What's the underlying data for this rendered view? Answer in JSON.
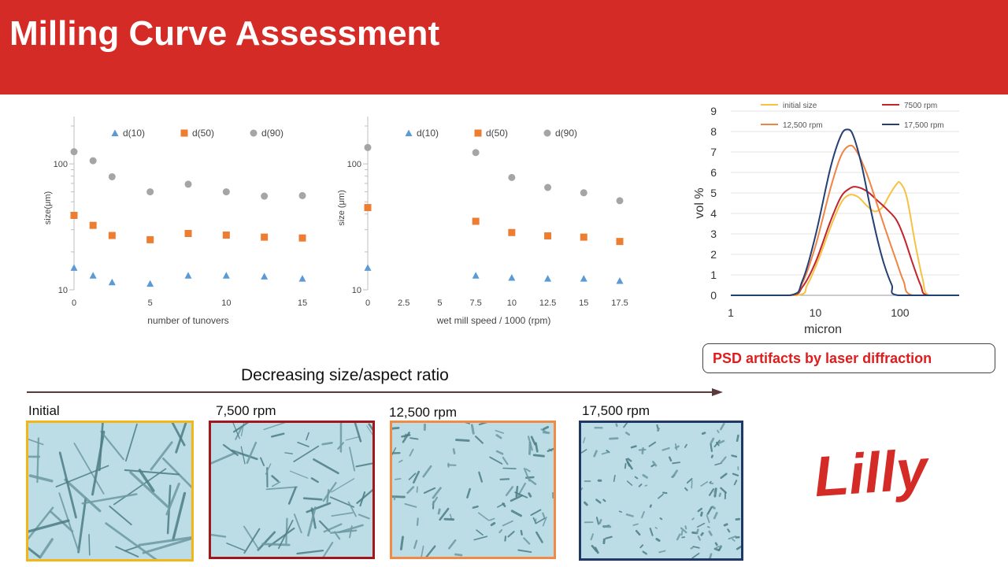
{
  "title": "Milling Curve Assessment",
  "psd_note": "PSD artifacts by laser diffraction",
  "trend_label": "Decreasing size/aspect ratio",
  "logo_text": "Lilly",
  "colors": {
    "banner": "#d52b26",
    "d10": "#5b9bd5",
    "d50": "#ed7d31",
    "d90": "#a5a5a5"
  },
  "micrographs": [
    {
      "label": "Initial",
      "border": "#f2b619",
      "particle": "long-needles"
    },
    {
      "label": "7,500 rpm",
      "border": "#a3171c",
      "particle": "needles"
    },
    {
      "label": "12,500 rpm",
      "border": "#f08a45",
      "particle": "short-rods"
    },
    {
      "label": "17,500 rpm",
      "border": "#1f3864",
      "particle": "fines"
    }
  ],
  "chart_data": [
    {
      "type": "scatter",
      "xlabel": "number of tunovers",
      "ylabel": "size(μm)",
      "xlim": [
        0,
        15
      ],
      "xticks": [
        0,
        5,
        10,
        15
      ],
      "ylim": [
        10,
        200
      ],
      "yscale": "log",
      "yticks": [
        10,
        100
      ],
      "legend": "top",
      "series": [
        {
          "name": "d(10)",
          "marker": "triangle",
          "color": "#5b9bd5",
          "x": [
            0,
            1.25,
            2.5,
            5,
            7.5,
            10,
            12.5,
            15
          ],
          "y": [
            15,
            13,
            11.5,
            11.2,
            13,
            13,
            12.8,
            12.3
          ]
        },
        {
          "name": "d(50)",
          "marker": "square",
          "color": "#ed7d31",
          "x": [
            0,
            1.25,
            2.5,
            5,
            7.5,
            10,
            12.5,
            15
          ],
          "y": [
            39,
            32.5,
            27,
            25,
            28,
            27.2,
            26.2,
            25.8
          ]
        },
        {
          "name": "d(90)",
          "marker": "circle",
          "color": "#a5a5a5",
          "x": [
            0,
            1.25,
            2.5,
            5,
            7.5,
            10,
            12.5,
            15
          ],
          "y": [
            125,
            106,
            79,
            60,
            69,
            60,
            55.5,
            56
          ]
        }
      ]
    },
    {
      "type": "scatter",
      "xlabel": "wet mill speed / 1000 (rpm)",
      "ylabel": "size (μm)",
      "xlim": [
        0,
        17.5
      ],
      "xticks": [
        0,
        2.5,
        5,
        7.5,
        10,
        12.5,
        15,
        17.5
      ],
      "ylim": [
        10,
        200
      ],
      "yscale": "log",
      "yticks": [
        10,
        100
      ],
      "legend": "top",
      "series": [
        {
          "name": "d(10)",
          "marker": "triangle",
          "color": "#5b9bd5",
          "x": [
            0,
            7.5,
            10,
            12.5,
            15,
            17.5
          ],
          "y": [
            15,
            13,
            12.5,
            12.3,
            12.3,
            11.8
          ]
        },
        {
          "name": "d(50)",
          "marker": "square",
          "color": "#ed7d31",
          "x": [
            0,
            7.5,
            10,
            12.5,
            15,
            17.5
          ],
          "y": [
            45,
            35,
            28.5,
            26.8,
            26.2,
            24.2
          ]
        },
        {
          "name": "d(90)",
          "marker": "circle",
          "color": "#a5a5a5",
          "x": [
            0,
            7.5,
            10,
            12.5,
            15,
            17.5
          ],
          "y": [
            135,
            123,
            78,
            65,
            59,
            51
          ]
        }
      ]
    },
    {
      "type": "line",
      "xlabel": "micron",
      "ylabel": "vol %",
      "xscale": "log",
      "xlim": [
        1,
        500
      ],
      "xticks": [
        1,
        10,
        100
      ],
      "ylim": [
        0,
        9
      ],
      "yticks": [
        0,
        1,
        2,
        3,
        4,
        5,
        6,
        7,
        8,
        9
      ],
      "legend": "top",
      "series": [
        {
          "name": "initial size",
          "color": "#f5c242",
          "x": [
            1,
            6,
            8,
            11,
            15,
            20,
            25,
            32,
            40,
            50,
            62,
            75,
            90,
            100,
            120,
            150,
            185,
            220,
            500
          ],
          "y": [
            0,
            0,
            0.5,
            1.8,
            3.3,
            4.5,
            4.9,
            4.8,
            4.4,
            4.1,
            4.3,
            4.9,
            5.4,
            5.5,
            4.8,
            2.6,
            0.8,
            0,
            0
          ]
        },
        {
          "name": "7500 rpm",
          "color": "#c3232a",
          "x": [
            1,
            5,
            7,
            10,
            15,
            20,
            25,
            30,
            40,
            55,
            70,
            90,
            110,
            140,
            175,
            210,
            500
          ],
          "y": [
            0,
            0,
            0.4,
            1.6,
            3.6,
            4.8,
            5.2,
            5.3,
            5.1,
            4.6,
            4.2,
            3.7,
            2.9,
            1.6,
            0.5,
            0,
            0
          ]
        },
        {
          "name": "12,500 rpm",
          "color": "#ee8445",
          "x": [
            1,
            5,
            7,
            10,
            15,
            20,
            25,
            30,
            40,
            55,
            70,
            90,
            110,
            140,
            500
          ],
          "y": [
            0,
            0,
            0.6,
            2.4,
            5.2,
            6.8,
            7.3,
            7.1,
            6.0,
            4.3,
            3.0,
            1.7,
            0.7,
            0,
            0
          ]
        },
        {
          "name": "17,500 rpm",
          "color": "#243f73",
          "x": [
            1,
            5,
            7,
            10,
            15,
            20,
            24,
            28,
            35,
            45,
            55,
            65,
            80,
            95,
            500
          ],
          "y": [
            0,
            0,
            0.7,
            2.9,
            6.2,
            7.8,
            8.1,
            7.8,
            6.4,
            4.2,
            2.6,
            1.5,
            0.5,
            0,
            0
          ]
        }
      ]
    }
  ]
}
